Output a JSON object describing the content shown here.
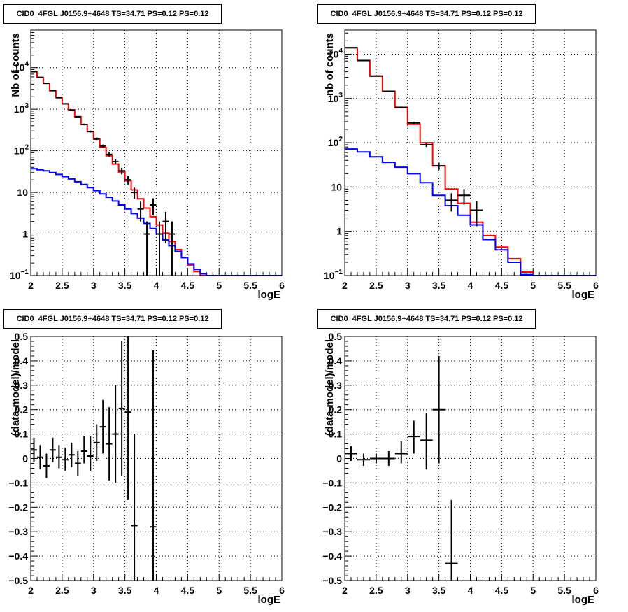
{
  "chart_data": [
    {
      "type": "line",
      "title": "CID0_4FGL J0156.9+4648 TS=34.71 PS=0.12 PS=0.12",
      "xlabel": "logE",
      "ylabel": "Nb of counts",
      "xlim": [
        2,
        6
      ],
      "ylim": [
        0.1,
        80000
      ],
      "yscale": "log",
      "grid": true,
      "x_ticks": [
        "2",
        "2.5",
        "3",
        "3.5",
        "4",
        "4.5",
        "5",
        "5.5",
        "6"
      ],
      "y_ticks": [
        {
          "value": 0.1,
          "label": "10",
          "sup": "−1"
        },
        {
          "value": 1,
          "label": "1",
          "sup": ""
        },
        {
          "value": 10,
          "label": "10",
          "sup": ""
        },
        {
          "value": 100,
          "label": "10",
          "sup": "2"
        },
        {
          "value": 1000,
          "label": "10",
          "sup": "3"
        },
        {
          "value": 10000,
          "label": "10",
          "sup": "4"
        }
      ],
      "bin_edges": [
        2.0,
        2.1,
        2.2,
        2.3,
        2.4,
        2.5,
        2.6,
        2.7,
        2.8,
        2.9,
        3.0,
        3.1,
        3.2,
        3.3,
        3.4,
        3.5,
        3.6,
        3.7,
        3.8,
        3.9,
        4.0,
        4.1,
        4.2,
        4.3,
        4.4,
        4.5,
        4.6,
        4.7,
        4.8,
        4.9,
        5.0,
        5.1,
        5.2,
        5.3,
        5.4,
        5.5,
        5.6,
        5.7,
        5.8,
        5.9,
        6.0
      ],
      "series": [
        {
          "color": "#ff0000",
          "style": "step",
          "values": [
            8000,
            5800,
            4200,
            2800,
            1900,
            1350,
            960,
            660,
            430,
            290,
            190,
            120,
            76,
            48,
            31,
            19,
            11.5,
            7.0,
            4.2,
            2.6,
            1.65,
            1.05,
            0.66,
            0.42,
            0.27,
            0.18,
            0.125,
            0.1,
            0.1,
            0.1,
            0.1,
            0.1,
            0.1,
            0.1,
            0.1,
            0.1,
            0.1,
            0.1,
            0.1,
            0.1
          ]
        },
        {
          "color": "#0000ff",
          "style": "step",
          "values": [
            37,
            35,
            33,
            30,
            27,
            24,
            21,
            18,
            15.5,
            13,
            11,
            9.2,
            7.6,
            6.2,
            5.0,
            4.0,
            3.1,
            2.4,
            1.8,
            1.35,
            1.0,
            0.72,
            0.52,
            0.38,
            0.27,
            0.19,
            0.14,
            0.11,
            0.1,
            0.1,
            0.1,
            0.1,
            0.1,
            0.1,
            0.1,
            0.1,
            0.1,
            0.1,
            0.1,
            0.1
          ]
        },
        {
          "color": "#000000",
          "style": "errorbar",
          "points": [
            {
              "x": 2.05,
              "y": 8000,
              "lo": 7900,
              "hi": 8100
            },
            {
              "x": 2.15,
              "y": 5800,
              "lo": 5700,
              "hi": 5900
            },
            {
              "x": 2.25,
              "y": 4200,
              "lo": 4100,
              "hi": 4300
            },
            {
              "x": 2.35,
              "y": 2800,
              "lo": 2750,
              "hi": 2850
            },
            {
              "x": 2.45,
              "y": 1900,
              "lo": 1850,
              "hi": 1950
            },
            {
              "x": 2.55,
              "y": 1350,
              "lo": 1310,
              "hi": 1390
            },
            {
              "x": 2.65,
              "y": 960,
              "lo": 930,
              "hi": 990
            },
            {
              "x": 2.75,
              "y": 660,
              "lo": 635,
              "hi": 685
            },
            {
              "x": 2.85,
              "y": 430,
              "lo": 410,
              "hi": 450
            },
            {
              "x": 2.95,
              "y": 290,
              "lo": 273,
              "hi": 307
            },
            {
              "x": 3.05,
              "y": 195,
              "lo": 181,
              "hi": 209
            },
            {
              "x": 3.15,
              "y": 130,
              "lo": 119,
              "hi": 141
            },
            {
              "x": 3.25,
              "y": 82,
              "lo": 73,
              "hi": 91
            },
            {
              "x": 3.35,
              "y": 55,
              "lo": 48,
              "hi": 62
            },
            {
              "x": 3.45,
              "y": 33,
              "lo": 27,
              "hi": 39
            },
            {
              "x": 3.55,
              "y": 20,
              "lo": 15.5,
              "hi": 24.5
            },
            {
              "x": 3.65,
              "y": 10,
              "lo": 7,
              "hi": 13
            },
            {
              "x": 3.75,
              "y": 4,
              "lo": 2,
              "hi": 6
            },
            {
              "x": 3.85,
              "y": 1,
              "lo": 0.1,
              "hi": 2
            },
            {
              "x": 3.95,
              "y": 5,
              "lo": 2.8,
              "hi": 7.2
            },
            {
              "x": 4.05,
              "y": 1,
              "lo": 0.1,
              "hi": 2
            },
            {
              "x": 4.15,
              "y": 2,
              "lo": 0.6,
              "hi": 3.4
            },
            {
              "x": 4.25,
              "y": 1,
              "lo": 0.1,
              "hi": 2
            }
          ]
        }
      ]
    },
    {
      "type": "line",
      "title": "CID0_4FGL J0156.9+4648 TS=34.71 PS=0.12 PS=0.12",
      "xlabel": "logE",
      "ylabel": "nb of counts",
      "xlim": [
        2,
        6
      ],
      "ylim": [
        0.1,
        35000
      ],
      "yscale": "log",
      "grid": true,
      "x_ticks": [
        "2",
        "2.5",
        "3",
        "3.5",
        "4",
        "4.5",
        "5",
        "5.5",
        "6"
      ],
      "y_ticks": [
        {
          "value": 0.1,
          "label": "10",
          "sup": "−1"
        },
        {
          "value": 1,
          "label": "1",
          "sup": ""
        },
        {
          "value": 10,
          "label": "10",
          "sup": ""
        },
        {
          "value": 100,
          "label": "10",
          "sup": "2"
        },
        {
          "value": 1000,
          "label": "10",
          "sup": "3"
        },
        {
          "value": 10000,
          "label": "10",
          "sup": "4"
        }
      ],
      "bin_edges": [
        2.0,
        2.2,
        2.4,
        2.6,
        2.8,
        3.0,
        3.2,
        3.4,
        3.6,
        3.8,
        4.0,
        4.2,
        4.4,
        4.6,
        4.8,
        5.0,
        5.2,
        5.4,
        5.6,
        5.8,
        6.0
      ],
      "series": [
        {
          "color": "#ff0000",
          "style": "step",
          "values": [
            14000,
            7200,
            3200,
            1450,
            620,
            260,
            100,
            30,
            9,
            4.3,
            1.6,
            0.8,
            0.44,
            0.24,
            0.12,
            0.1,
            0.1,
            0.1,
            0.1,
            0.1
          ]
        },
        {
          "color": "#0000ff",
          "style": "step",
          "values": [
            72,
            62,
            48,
            36,
            28,
            20,
            12.5,
            6.5,
            3.8,
            2.3,
            1.4,
            0.65,
            0.38,
            0.2,
            0.105,
            0.1,
            0.1,
            0.1,
            0.1,
            0.1
          ]
        },
        {
          "color": "#000000",
          "style": "errorbar",
          "points": [
            {
              "x": 2.1,
              "y": 14000,
              "lo": 13880,
              "hi": 14120
            },
            {
              "x": 2.3,
              "y": 7200,
              "lo": 7115,
              "hi": 7285
            },
            {
              "x": 2.5,
              "y": 3200,
              "lo": 3143,
              "hi": 3257
            },
            {
              "x": 2.7,
              "y": 1450,
              "lo": 1412,
              "hi": 1488
            },
            {
              "x": 2.9,
              "y": 630,
              "lo": 605,
              "hi": 655
            },
            {
              "x": 3.1,
              "y": 280,
              "lo": 263,
              "hi": 297
            },
            {
              "x": 3.3,
              "y": 90,
              "lo": 80,
              "hi": 100
            },
            {
              "x": 3.5,
              "y": 30,
              "lo": 24.5,
              "hi": 35.5
            },
            {
              "x": 3.7,
              "y": 5,
              "lo": 2.8,
              "hi": 7.2
            },
            {
              "x": 3.9,
              "y": 6.5,
              "lo": 4,
              "hi": 9
            },
            {
              "x": 4.1,
              "y": 3,
              "lo": 1.3,
              "hi": 4.7
            }
          ]
        }
      ]
    },
    {
      "type": "scatter",
      "title": "CID0_4FGL J0156.9+4648 TS=34.71 PS=0.12 PS=0.12",
      "xlabel": "logE",
      "ylabel": "(data-model)/model",
      "xlim": [
        2,
        6
      ],
      "ylim": [
        -0.5,
        0.5
      ],
      "grid": true,
      "x_ticks": [
        "2",
        "2.5",
        "3",
        "3.5",
        "4",
        "4.5",
        "5",
        "5.5",
        "6"
      ],
      "y_ticks": [
        "−0.5",
        "−0.4",
        "−0.3",
        "−0.2",
        "−0.1",
        "0",
        "0.1",
        "0.2",
        "0.3",
        "0.4",
        "0.5"
      ],
      "points": [
        {
          "x": 2.05,
          "y": 0.035,
          "lo": -0.015,
          "hi": 0.085
        },
        {
          "x": 2.15,
          "y": 0.005,
          "lo": -0.045,
          "hi": 0.055
        },
        {
          "x": 2.25,
          "y": -0.03,
          "lo": -0.08,
          "hi": 0.02
        },
        {
          "x": 2.35,
          "y": 0.035,
          "lo": -0.015,
          "hi": 0.085
        },
        {
          "x": 2.45,
          "y": 0.005,
          "lo": -0.04,
          "hi": 0.055
        },
        {
          "x": 2.55,
          "y": -0.005,
          "lo": -0.05,
          "hi": 0.045
        },
        {
          "x": 2.65,
          "y": 0.015,
          "lo": -0.035,
          "hi": 0.065
        },
        {
          "x": 2.75,
          "y": -0.02,
          "lo": -0.07,
          "hi": 0.03
        },
        {
          "x": 2.85,
          "y": 0.03,
          "lo": -0.02,
          "hi": 0.09
        },
        {
          "x": 2.95,
          "y": 0.01,
          "lo": -0.05,
          "hi": 0.09
        },
        {
          "x": 3.05,
          "y": 0.065,
          "lo": -0.01,
          "hi": 0.14
        },
        {
          "x": 3.15,
          "y": 0.13,
          "lo": 0.02,
          "hi": 0.24
        },
        {
          "x": 3.25,
          "y": 0.06,
          "lo": -0.09,
          "hi": 0.21
        },
        {
          "x": 3.35,
          "y": 0.1,
          "lo": -0.1,
          "hi": 0.3
        },
        {
          "x": 3.45,
          "y": 0.205,
          "lo": -0.07,
          "hi": 0.48
        },
        {
          "x": 3.55,
          "y": 0.19,
          "lo": -0.17,
          "hi": 0.5
        },
        {
          "x": 3.65,
          "y": -0.275,
          "lo": -0.5,
          "hi": 0.1
        },
        {
          "x": 3.95,
          "y": -0.28,
          "lo": -0.5,
          "hi": 0.445
        }
      ]
    },
    {
      "type": "scatter",
      "title": "CID0_4FGL J0156.9+4648 TS=34.71 PS=0.12 PS=0.12",
      "xlabel": "logE",
      "ylabel": "(data-model)/model",
      "xlim": [
        2,
        6
      ],
      "ylim": [
        -0.5,
        0.5
      ],
      "grid": true,
      "x_ticks": [
        "2",
        "2.5",
        "3",
        "3.5",
        "4",
        "4.5",
        "5",
        "5.5",
        "6"
      ],
      "y_ticks": [
        "−0.5",
        "−0.4",
        "−0.3",
        "−0.2",
        "−0.1",
        "0",
        "0.1",
        "0.2",
        "0.3",
        "0.4",
        "0.5"
      ],
      "points": [
        {
          "x": 2.1,
          "y": 0.02,
          "lo": -0.01,
          "hi": 0.05
        },
        {
          "x": 2.3,
          "y": -0.005,
          "lo": -0.03,
          "hi": 0.02
        },
        {
          "x": 2.5,
          "y": 0.0,
          "lo": -0.02,
          "hi": 0.02
        },
        {
          "x": 2.7,
          "y": 0.0,
          "lo": -0.03,
          "hi": 0.03
        },
        {
          "x": 2.9,
          "y": 0.02,
          "lo": -0.02,
          "hi": 0.07
        },
        {
          "x": 3.1,
          "y": 0.09,
          "lo": 0.02,
          "hi": 0.155
        },
        {
          "x": 3.3,
          "y": 0.075,
          "lo": -0.045,
          "hi": 0.185
        },
        {
          "x": 3.5,
          "y": 0.2,
          "lo": -0.02,
          "hi": 0.42
        },
        {
          "x": 3.7,
          "y": -0.43,
          "lo": -0.5,
          "hi": -0.17
        }
      ]
    }
  ]
}
